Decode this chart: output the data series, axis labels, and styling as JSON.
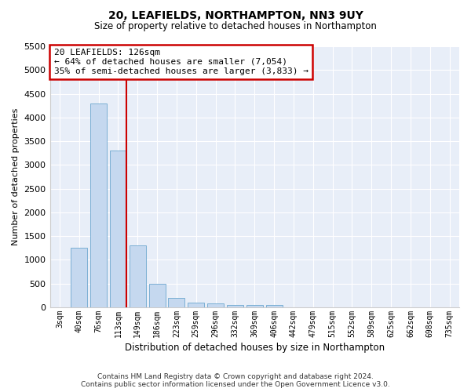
{
  "title": "20, LEAFIELDS, NORTHAMPTON, NN3 9UY",
  "subtitle": "Size of property relative to detached houses in Northampton",
  "xlabel": "Distribution of detached houses by size in Northampton",
  "ylabel": "Number of detached properties",
  "bar_color": "#c5d8ef",
  "bar_edge_color": "#7bafd4",
  "background_color": "#e8eef8",
  "grid_color": "#ffffff",
  "annotation_box_color": "#cc0000",
  "property_line_color": "#cc0000",
  "annotation_text": "20 LEAFIELDS: 126sqm\n← 64% of detached houses are smaller (7,054)\n35% of semi-detached houses are larger (3,833) →",
  "footer_line1": "Contains HM Land Registry data © Crown copyright and database right 2024.",
  "footer_line2": "Contains public sector information licensed under the Open Government Licence v3.0.",
  "categories": [
    "3sqm",
    "40sqm",
    "76sqm",
    "113sqm",
    "149sqm",
    "186sqm",
    "223sqm",
    "259sqm",
    "296sqm",
    "332sqm",
    "369sqm",
    "406sqm",
    "442sqm",
    "479sqm",
    "515sqm",
    "552sqm",
    "589sqm",
    "625sqm",
    "662sqm",
    "698sqm",
    "735sqm"
  ],
  "values": [
    0,
    1250,
    4300,
    3300,
    1300,
    500,
    200,
    100,
    75,
    50,
    50,
    50,
    0,
    0,
    0,
    0,
    0,
    0,
    0,
    0,
    0
  ],
  "ylim": [
    0,
    5500
  ],
  "yticks": [
    0,
    500,
    1000,
    1500,
    2000,
    2500,
    3000,
    3500,
    4000,
    4500,
    5000,
    5500
  ],
  "property_line_x": 3.43
}
